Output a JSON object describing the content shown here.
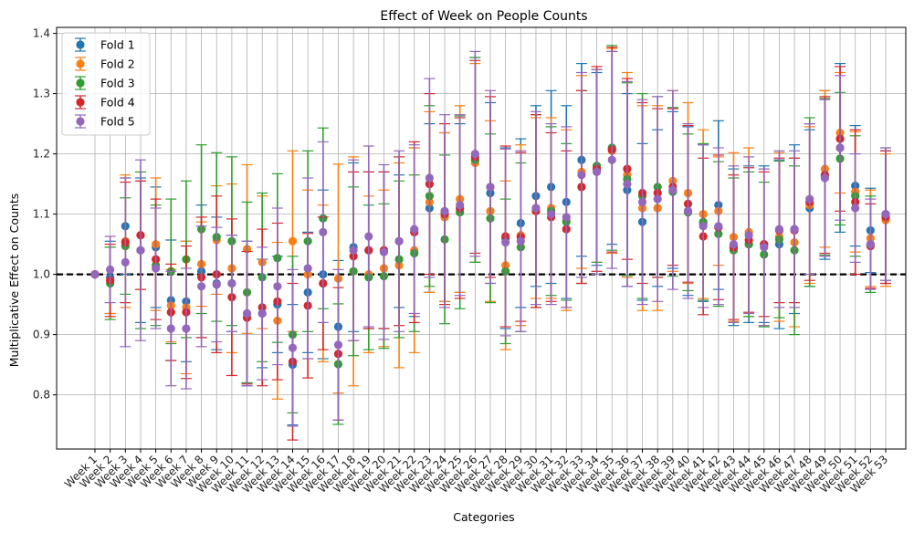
{
  "chart_data": {
    "type": "errorbar",
    "title": "Effect of Week on People Counts",
    "xlabel": "Categories",
    "ylabel": "Multiplicative Effect on Counts",
    "ylim": [
      0.71,
      1.41
    ],
    "yticks": [
      0.8,
      0.9,
      1.0,
      1.1,
      1.2,
      1.3,
      1.4
    ],
    "grid": true,
    "legend_position": "top-left",
    "reference_line": 1.0,
    "categories": [
      "Week 1",
      "Week 2",
      "Week 3",
      "Week 4",
      "Week 5",
      "Week 6",
      "Week 7",
      "Week 8",
      "Week 9",
      "Week 10",
      "Week 11",
      "Week 12",
      "Week 13",
      "Week 14",
      "Week 15",
      "Week 16",
      "Week 17",
      "Week 18",
      "Week 19",
      "Week 20",
      "Week 21",
      "Week 22",
      "Week 23",
      "Week 24",
      "Week 25",
      "Week 26",
      "Week 27",
      "Week 28",
      "Week 29",
      "Week 30",
      "Week 31",
      "Week 32",
      "Week 33",
      "Week 34",
      "Week 35",
      "Week 36",
      "Week 37",
      "Week 38",
      "Week 39",
      "Week 40",
      "Week 41",
      "Week 42",
      "Week 43",
      "Week 44",
      "Week 45",
      "Week 46",
      "Week 47",
      "Week 48",
      "Week 49",
      "Week 50",
      "Week 51",
      "Week 52",
      "Week 53"
    ],
    "series": [
      {
        "name": "Fold 1",
        "color": "#1f77b4",
        "values": [
          1.0,
          0.995,
          1.08,
          1.04,
          1.045,
          0.957,
          0.955,
          1.005,
          0.985,
          0.985,
          0.935,
          0.935,
          0.95,
          0.85,
          0.97,
          1.0,
          0.913,
          1.045,
          1.04,
          1.04,
          1.055,
          1.07,
          1.11,
          1.095,
          1.11,
          1.19,
          1.135,
          1.06,
          1.085,
          1.13,
          1.145,
          1.12,
          1.19,
          1.175,
          1.21,
          1.14,
          1.087,
          1.11,
          1.14,
          1.105,
          1.085,
          1.115,
          1.045,
          1.05,
          1.05,
          1.05,
          1.075,
          1.11,
          1.165,
          1.21,
          1.147,
          1.073,
          1.095
        ],
        "errors": [
          0.0,
          0.06,
          0.08,
          0.12,
          0.1,
          0.1,
          0.1,
          0.11,
          0.11,
          0.08,
          0.12,
          0.09,
          0.08,
          0.1,
          0.1,
          0.14,
          0.11,
          0.14,
          0.13,
          0.13,
          0.11,
          0.14,
          0.14,
          0.14,
          0.14,
          0.17,
          0.15,
          0.15,
          0.14,
          0.15,
          0.16,
          0.16,
          0.16,
          0.16,
          0.16,
          0.16,
          0.13,
          0.13,
          0.13,
          0.14,
          0.13,
          0.14,
          0.13,
          0.13,
          0.13,
          0.14,
          0.14,
          0.13,
          0.14,
          0.14,
          0.1,
          0.07,
          0.11
        ]
      },
      {
        "name": "Fold 2",
        "color": "#ff7f0e",
        "values": [
          1.0,
          0.99,
          1.055,
          1.065,
          1.05,
          0.948,
          0.945,
          1.017,
          1.057,
          1.01,
          1.042,
          1.02,
          0.923,
          1.055,
          1.0,
          0.985,
          0.993,
          1.005,
          1.0,
          1.01,
          1.015,
          1.04,
          1.12,
          1.095,
          1.125,
          1.185,
          1.105,
          1.015,
          1.065,
          1.11,
          1.11,
          1.09,
          1.17,
          1.18,
          1.205,
          1.165,
          1.11,
          1.11,
          1.155,
          1.135,
          1.1,
          1.105,
          1.062,
          1.07,
          1.045,
          1.062,
          1.053,
          1.115,
          1.175,
          1.235,
          1.137,
          1.06,
          1.09
        ],
        "errors": [
          0.0,
          0.055,
          0.11,
          0.09,
          0.11,
          0.06,
          0.11,
          0.07,
          0.09,
          0.14,
          0.14,
          0.11,
          0.13,
          0.15,
          0.14,
          0.13,
          0.19,
          0.19,
          0.13,
          0.13,
          0.17,
          0.17,
          0.15,
          0.14,
          0.155,
          0.165,
          0.15,
          0.14,
          0.15,
          0.15,
          0.15,
          0.15,
          0.16,
          0.16,
          0.17,
          0.17,
          0.17,
          0.17,
          0.15,
          0.15,
          0.14,
          0.09,
          0.14,
          0.14,
          0.13,
          0.14,
          0.14,
          0.13,
          0.13,
          0.1,
          0.1,
          0.08,
          0.11
        ]
      },
      {
        "name": "Fold 3",
        "color": "#2ca02c",
        "values": [
          1.0,
          0.985,
          1.047,
          1.04,
          1.015,
          1.005,
          1.025,
          1.075,
          1.062,
          1.055,
          0.97,
          0.995,
          1.027,
          0.9,
          1.055,
          1.093,
          0.851,
          1.005,
          0.995,
          0.997,
          1.025,
          1.035,
          1.13,
          1.058,
          1.103,
          1.19,
          1.093,
          1.005,
          1.045,
          1.105,
          1.105,
          1.087,
          1.145,
          1.18,
          1.21,
          1.158,
          1.13,
          1.145,
          1.137,
          1.103,
          1.087,
          1.067,
          1.04,
          1.05,
          1.033,
          1.058,
          1.04,
          1.12,
          1.162,
          1.192,
          1.13,
          1.05,
          1.1
        ],
        "errors": [
          0.0,
          0.06,
          0.08,
          0.13,
          0.1,
          0.12,
          0.13,
          0.14,
          0.14,
          0.14,
          0.15,
          0.14,
          0.14,
          0.13,
          0.15,
          0.15,
          0.1,
          0.14,
          0.12,
          0.12,
          0.13,
          0.13,
          0.15,
          0.14,
          0.16,
          0.17,
          0.14,
          0.12,
          0.14,
          0.16,
          0.14,
          0.13,
          0.16,
          0.16,
          0.17,
          0.16,
          0.17,
          0.15,
          0.14,
          0.13,
          0.13,
          0.12,
          0.12,
          0.12,
          0.12,
          0.13,
          0.14,
          0.14,
          0.13,
          0.11,
          0.1,
          0.08,
          0.11
        ]
      },
      {
        "name": "Fold 4",
        "color": "#d62728",
        "values": [
          1.0,
          0.99,
          1.053,
          1.065,
          1.025,
          0.937,
          0.937,
          0.995,
          1.0,
          0.962,
          0.928,
          0.945,
          0.955,
          0.855,
          0.948,
          0.985,
          0.868,
          1.03,
          1.04,
          1.04,
          1.055,
          1.07,
          1.15,
          1.1,
          1.11,
          1.195,
          1.145,
          1.063,
          1.062,
          1.105,
          1.095,
          1.075,
          1.145,
          1.175,
          1.207,
          1.175,
          1.135,
          1.135,
          1.145,
          1.117,
          1.063,
          1.078,
          1.045,
          1.057,
          1.05,
          1.073,
          1.073,
          1.12,
          1.165,
          1.225,
          1.12,
          1.047,
          1.095
        ],
        "errors": [
          0.0,
          0.06,
          0.1,
          0.09,
          0.1,
          0.08,
          0.11,
          0.1,
          0.13,
          0.13,
          0.11,
          0.13,
          0.13,
          0.13,
          0.12,
          0.11,
          0.11,
          0.14,
          0.13,
          0.13,
          0.14,
          0.15,
          0.15,
          0.15,
          0.15,
          0.16,
          0.15,
          0.15,
          0.14,
          0.16,
          0.14,
          0.13,
          0.16,
          0.17,
          0.17,
          0.15,
          0.15,
          0.14,
          0.13,
          0.13,
          0.13,
          0.12,
          0.12,
          0.12,
          0.12,
          0.12,
          0.12,
          0.13,
          0.13,
          0.12,
          0.12,
          0.07,
          0.11
        ]
      },
      {
        "name": "Fold 5",
        "color": "#9467bd",
        "values": [
          1.0,
          1.008,
          1.02,
          1.04,
          1.01,
          0.91,
          0.91,
          0.98,
          0.983,
          0.985,
          0.935,
          0.935,
          0.98,
          0.878,
          1.01,
          1.07,
          0.883,
          1.04,
          1.063,
          1.037,
          1.055,
          1.075,
          1.16,
          1.105,
          1.115,
          1.2,
          1.145,
          1.053,
          1.055,
          1.11,
          1.1,
          1.095,
          1.165,
          1.17,
          1.19,
          1.15,
          1.12,
          1.125,
          1.14,
          1.105,
          1.08,
          1.08,
          1.05,
          1.065,
          1.045,
          1.075,
          1.075,
          1.125,
          1.16,
          1.21,
          1.11,
          1.05,
          1.1
        ],
        "errors": [
          0.0,
          0.055,
          0.14,
          0.15,
          0.1,
          0.095,
          0.1,
          0.1,
          0.095,
          0.08,
          0.12,
          0.11,
          0.13,
          0.13,
          0.15,
          0.15,
          0.125,
          0.15,
          0.15,
          0.145,
          0.15,
          0.14,
          0.165,
          0.16,
          0.15,
          0.17,
          0.16,
          0.155,
          0.15,
          0.16,
          0.15,
          0.15,
          0.17,
          0.17,
          0.18,
          0.17,
          0.17,
          0.17,
          0.165,
          0.145,
          0.135,
          0.13,
          0.13,
          0.13,
          0.13,
          0.13,
          0.13,
          0.125,
          0.13,
          0.12,
          0.09,
          0.075,
          0.11
        ]
      }
    ]
  }
}
